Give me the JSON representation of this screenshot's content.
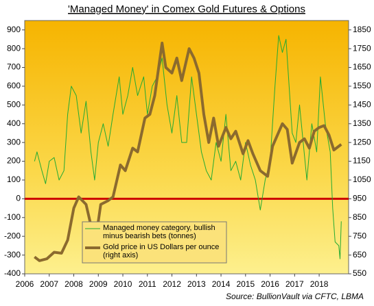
{
  "chart_data": {
    "type": "line",
    "title": "'Managed Money' in Comex Gold Futures & Options",
    "source": "Source: BullionVault via CFTC, LBMA",
    "xlim": [
      2006,
      2019.2
    ],
    "xticks": [
      2006,
      2007,
      2008,
      2009,
      2010,
      2011,
      2012,
      2013,
      2014,
      2015,
      2016,
      2017,
      2018
    ],
    "ylim": [
      -400,
      950
    ],
    "yticks": [
      -400,
      -300,
      -200,
      -100,
      0,
      100,
      200,
      300,
      400,
      500,
      600,
      700,
      800,
      900
    ],
    "y2lim": [
      550,
      1900
    ],
    "y2ticks": [
      550,
      650,
      750,
      850,
      950,
      1050,
      1150,
      1250,
      1350,
      1450,
      1550,
      1650,
      1750,
      1850
    ],
    "zero_line_color": "#cc0000",
    "series": [
      {
        "name": "Managed money category, bullish minus bearish bets (tonnes)",
        "color": "#22aa33",
        "width": 1,
        "x": [
          2006.4,
          2006.5,
          2006.7,
          2006.85,
          2007.0,
          2007.2,
          2007.4,
          2007.6,
          2007.75,
          2007.9,
          2008.1,
          2008.3,
          2008.5,
          2008.7,
          2008.85,
          2009.0,
          2009.2,
          2009.4,
          2009.6,
          2009.85,
          2010.0,
          2010.2,
          2010.4,
          2010.6,
          2010.85,
          2011.0,
          2011.2,
          2011.4,
          2011.6,
          2011.8,
          2012.0,
          2012.2,
          2012.4,
          2012.6,
          2012.8,
          2013.0,
          2013.2,
          2013.4,
          2013.6,
          2013.8,
          2014.0,
          2014.2,
          2014.4,
          2014.6,
          2014.8,
          2015.0,
          2015.2,
          2015.4,
          2015.6,
          2015.8,
          2016.0,
          2016.2,
          2016.35,
          2016.5,
          2016.65,
          2016.9,
          2017.05,
          2017.2,
          2017.35,
          2017.5,
          2017.7,
          2017.9,
          2018.05,
          2018.25,
          2018.45,
          2018.55,
          2018.65,
          2018.8,
          2018.85,
          2018.9
        ],
        "values": [
          200,
          250,
          150,
          80,
          200,
          220,
          100,
          150,
          450,
          600,
          550,
          350,
          520,
          250,
          100,
          300,
          400,
          280,
          450,
          650,
          450,
          550,
          700,
          550,
          650,
          450,
          600,
          650,
          750,
          500,
          350,
          550,
          300,
          300,
          650,
          450,
          250,
          150,
          100,
          300,
          200,
          450,
          150,
          200,
          100,
          300,
          180,
          100,
          -60,
          100,
          200,
          600,
          870,
          780,
          850,
          350,
          300,
          500,
          300,
          100,
          400,
          250,
          650,
          400,
          250,
          -50,
          -230,
          -250,
          -320,
          -120
        ]
      },
      {
        "name": "Gold price in US Dollars per ounce (right axis)",
        "color": "#8b6a2e",
        "width": 4,
        "axis": "y2",
        "x": [
          2006.4,
          2006.6,
          2006.9,
          2007.2,
          2007.5,
          2007.75,
          2008.0,
          2008.2,
          2008.5,
          2008.75,
          2008.9,
          2009.1,
          2009.4,
          2009.6,
          2009.9,
          2010.1,
          2010.4,
          2010.6,
          2010.9,
          2011.1,
          2011.3,
          2011.6,
          2011.75,
          2012.0,
          2012.2,
          2012.4,
          2012.7,
          2012.9,
          2013.1,
          2013.3,
          2013.5,
          2013.7,
          2013.9,
          2014.2,
          2014.4,
          2014.6,
          2014.9,
          2015.1,
          2015.3,
          2015.6,
          2015.9,
          2016.1,
          2016.5,
          2016.7,
          2016.9,
          2017.2,
          2017.4,
          2017.6,
          2017.8,
          2018.0,
          2018.2,
          2018.4,
          2018.6,
          2018.8,
          2018.9
        ],
        "values": [
          640,
          620,
          630,
          665,
          660,
          730,
          900,
          960,
          920,
          780,
          740,
          920,
          940,
          960,
          1130,
          1100,
          1220,
          1200,
          1380,
          1400,
          1500,
          1780,
          1650,
          1620,
          1700,
          1580,
          1750,
          1700,
          1620,
          1400,
          1250,
          1380,
          1230,
          1330,
          1270,
          1310,
          1190,
          1260,
          1190,
          1100,
          1070,
          1230,
          1350,
          1320,
          1140,
          1250,
          1270,
          1220,
          1310,
          1330,
          1340,
          1290,
          1210,
          1230,
          1240
        ]
      }
    ]
  }
}
